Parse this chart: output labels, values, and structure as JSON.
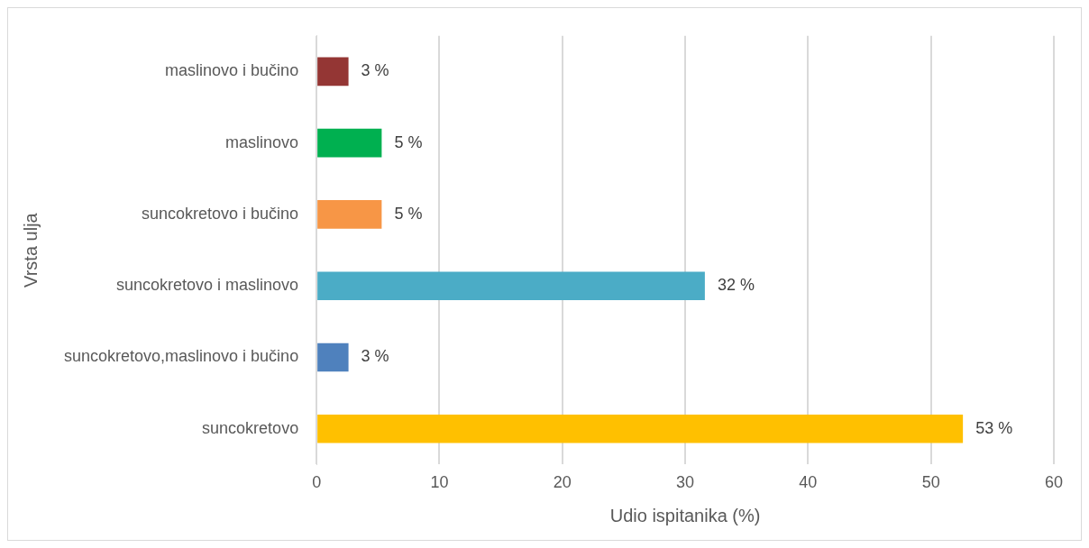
{
  "chart_data": {
    "type": "bar",
    "orientation": "horizontal",
    "categories": [
      "maslinovo i bučino",
      "maslinovo",
      "suncokretovo i bučino",
      "suncokretovo i maslinovo",
      "suncokretovo,maslinovo i bučino",
      "suncokretovo"
    ],
    "values": [
      2.6,
      5.3,
      5.3,
      31.6,
      2.6,
      52.6
    ],
    "colors": [
      "#943634",
      "#00b050",
      "#f79646",
      "#4bacc6",
      "#4f81bd",
      "#ffc000"
    ],
    "value_labels": [
      "3 %",
      "5 %",
      "5 %",
      "32 %",
      "3 %",
      "53 %"
    ],
    "xlabel": "Udio ispitanika (%)",
    "ylabel": "Vrsta ulja",
    "xlim": [
      0,
      60
    ],
    "xticks": [
      0,
      10,
      20,
      30,
      40,
      50,
      60
    ],
    "grid": "x"
  }
}
